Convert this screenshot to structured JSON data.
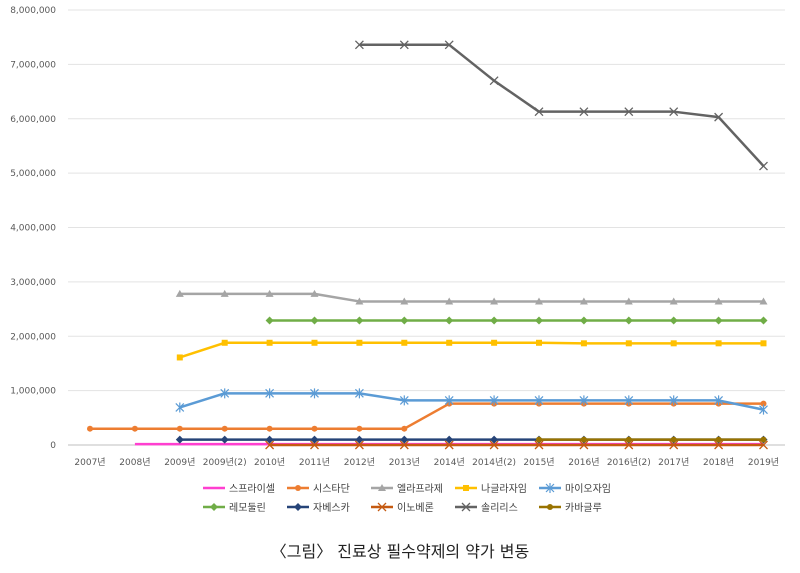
{
  "chart_data": {
    "type": "line",
    "categories": [
      "2007년",
      "2008년",
      "2009년",
      "2009년(2)",
      "2010년",
      "2011년",
      "2012년",
      "2013년",
      "2014년",
      "2014년(2)",
      "2015년",
      "2016년",
      "2016년(2)",
      "2017년",
      "2018년",
      "2019년"
    ],
    "ylim": [
      0,
      8000000
    ],
    "yticks": [
      "0",
      "1,000,000",
      "2,000,000",
      "3,000,000",
      "4,000,000",
      "5,000,000",
      "6,000,000",
      "7,000,000",
      "8,000,000"
    ],
    "grid": true,
    "legend_position": "bottom",
    "series": [
      {
        "name": "스프라이셀",
        "color": "#ff3fd0",
        "marker": "none",
        "values": [
          null,
          15000,
          15000,
          15000,
          15000,
          15000,
          15000,
          15000,
          15000,
          15000,
          15000,
          15000,
          15000,
          15000,
          15000,
          15000
        ]
      },
      {
        "name": "시스타단",
        "color": "#ed7d31",
        "marker": "circle",
        "values": [
          300000,
          300000,
          300000,
          300000,
          300000,
          300000,
          300000,
          300000,
          760000,
          760000,
          760000,
          760000,
          760000,
          760000,
          760000,
          760000
        ]
      },
      {
        "name": "엘라프라제",
        "color": "#a5a5a5",
        "marker": "triangle",
        "values": [
          null,
          null,
          2780000,
          2780000,
          2780000,
          2780000,
          2640000,
          2640000,
          2640000,
          2640000,
          2640000,
          2640000,
          2640000,
          2640000,
          2640000,
          2640000
        ]
      },
      {
        "name": "나글라자임",
        "color": "#ffc000",
        "marker": "square",
        "values": [
          null,
          null,
          1610000,
          1880000,
          1880000,
          1880000,
          1880000,
          1880000,
          1880000,
          1880000,
          1880000,
          1870000,
          1870000,
          1870000,
          1870000,
          1870000
        ]
      },
      {
        "name": "마이오자임",
        "color": "#5b9bd5",
        "marker": "star",
        "values": [
          null,
          null,
          690000,
          950000,
          950000,
          950000,
          950000,
          820000,
          820000,
          820000,
          820000,
          820000,
          820000,
          820000,
          820000,
          650000
        ]
      },
      {
        "name": "레모둘린",
        "color": "#70ad47",
        "marker": "diamond",
        "values": [
          null,
          null,
          null,
          null,
          2290000,
          2290000,
          2290000,
          2290000,
          2290000,
          2290000,
          2290000,
          2290000,
          2290000,
          2290000,
          2290000,
          2290000
        ]
      },
      {
        "name": "자베스카",
        "color": "#264478",
        "marker": "diamond",
        "values": [
          null,
          null,
          100000,
          100000,
          100000,
          100000,
          100000,
          100000,
          100000,
          100000,
          100000,
          100000,
          100000,
          100000,
          100000,
          100000
        ]
      },
      {
        "name": "이노베론",
        "color": "#c55a11",
        "marker": "x",
        "values": [
          null,
          null,
          null,
          null,
          0,
          0,
          0,
          0,
          0,
          0,
          0,
          0,
          0,
          0,
          0,
          0
        ]
      },
      {
        "name": "솔리리스",
        "color": "#636363",
        "marker": "x",
        "values": [
          null,
          null,
          null,
          null,
          null,
          null,
          7360000,
          7360000,
          7360000,
          6700000,
          6130000,
          6130000,
          6130000,
          6130000,
          6030000,
          5130000
        ]
      },
      {
        "name": "카바글루",
        "color": "#997300",
        "marker": "circle",
        "values": [
          null,
          null,
          null,
          null,
          null,
          null,
          null,
          null,
          null,
          null,
          100000,
          100000,
          100000,
          100000,
          100000,
          100000
        ]
      }
    ]
  },
  "caption": "〈그림〉 진료상 필수약제의 약가 변동"
}
